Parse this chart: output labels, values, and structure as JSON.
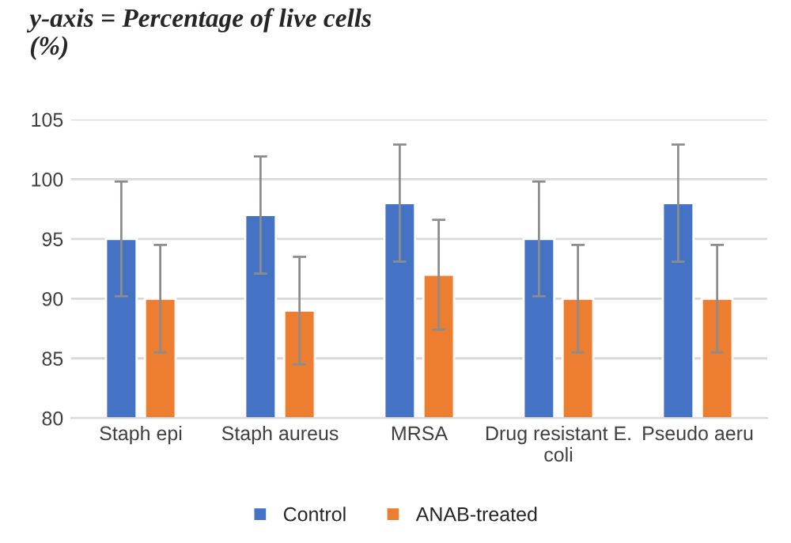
{
  "chart_data": {
    "type": "bar",
    "title": "y-axis = Percentage of live cells (%)",
    "categories": [
      "Staph epi",
      "Staph aureus",
      "MRSA",
      "Drug resistant E. coli",
      "Pseudo aeru"
    ],
    "series": [
      {
        "name": "Control",
        "color": "#4472c4",
        "values": [
          95,
          97,
          98,
          95,
          98
        ],
        "errors": [
          4.8,
          4.9,
          4.9,
          4.8,
          4.9
        ]
      },
      {
        "name": "ANAB-treated",
        "color": "#ed7d31",
        "values": [
          90,
          89,
          92,
          90,
          90
        ],
        "errors": [
          4.5,
          4.5,
          4.6,
          4.5,
          4.5
        ]
      }
    ],
    "ylim": [
      80,
      105
    ],
    "yticks": [
      80,
      85,
      90,
      95,
      100,
      105
    ],
    "grid": "y",
    "legend": "bottom"
  }
}
